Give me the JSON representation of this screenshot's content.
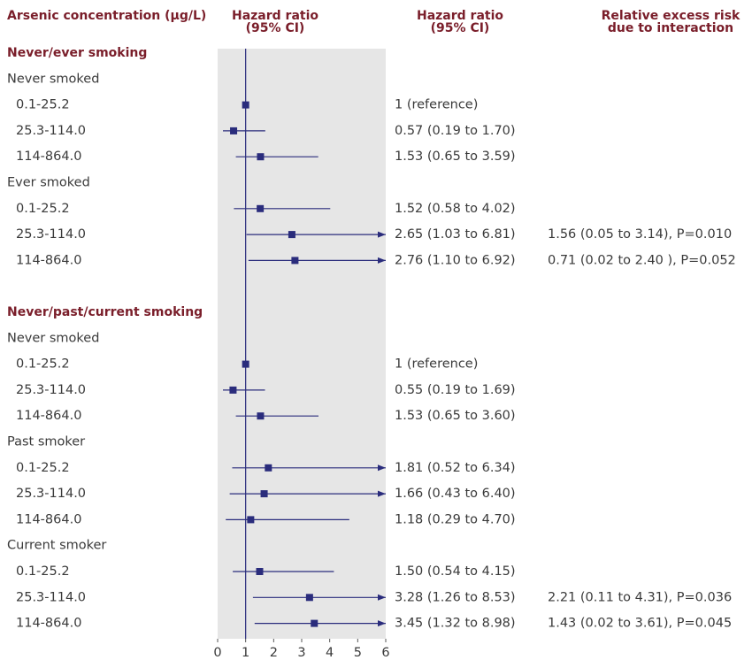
{
  "chart_data": {
    "type": "forest",
    "headers": [
      [
        "Arsenic concentration (μg/L)"
      ],
      [
        "Hazard ratio",
        "(95% CI)"
      ],
      [
        "Hazard ratio",
        "(95% CI)"
      ],
      [
        "Relative excess risk",
        "due to interaction"
      ]
    ],
    "color": "#2a2c7c",
    "reference_line": 1,
    "xlim": [
      0,
      6
    ],
    "xticks": [
      0,
      1,
      2,
      3,
      4,
      5,
      6
    ],
    "rows": [
      {
        "kind": "section",
        "label": "Never/ever smoking"
      },
      {
        "kind": "group",
        "label": "Never smoked"
      },
      {
        "kind": "item",
        "label": "0.1-25.2",
        "value": 1,
        "value_label": "1 (reference)"
      },
      {
        "kind": "item",
        "label": "25.3-114.0",
        "value": 0.57,
        "lower": 0.19,
        "upper": 1.7,
        "value_label": "0.57 (0.19 to 1.70)"
      },
      {
        "kind": "item",
        "label": "114-864.0",
        "value": 1.53,
        "lower": 0.65,
        "upper": 3.59,
        "value_label": "1.53 (0.65 to 3.59)"
      },
      {
        "kind": "group",
        "label": "Ever smoked"
      },
      {
        "kind": "item",
        "label": "0.1-25.2",
        "value": 1.52,
        "lower": 0.58,
        "upper": 4.02,
        "value_label": "1.52 (0.58 to 4.02)"
      },
      {
        "kind": "item",
        "label": "25.3-114.0",
        "value": 2.65,
        "lower": 1.03,
        "upper": 6.81,
        "value_label": "2.65 (1.03 to 6.81)",
        "rer_label": "1.56 (0.05 to 3.14), P=0.010"
      },
      {
        "kind": "item",
        "label": "114-864.0",
        "value": 2.76,
        "lower": 1.1,
        "upper": 6.92,
        "value_label": "2.76 (1.10 to 6.92)",
        "rer_label": "0.71 (0.02 to 2.40 ), P=0.052"
      },
      {
        "kind": "section",
        "label": "Never/past/current smoking"
      },
      {
        "kind": "group",
        "label": "Never smoked"
      },
      {
        "kind": "item",
        "label": "0.1-25.2",
        "value": 1,
        "value_label": "1 (reference)"
      },
      {
        "kind": "item",
        "label": "25.3-114.0",
        "value": 0.55,
        "lower": 0.19,
        "upper": 1.69,
        "value_label": "0.55 (0.19 to 1.69)"
      },
      {
        "kind": "item",
        "label": "114-864.0",
        "value": 1.53,
        "lower": 0.65,
        "upper": 3.6,
        "value_label": "1.53 (0.65 to 3.60)"
      },
      {
        "kind": "group",
        "label": "Past smoker"
      },
      {
        "kind": "item",
        "label": "0.1-25.2",
        "value": 1.81,
        "lower": 0.52,
        "upper": 6.34,
        "value_label": "1.81 (0.52 to 6.34)"
      },
      {
        "kind": "item",
        "label": "25.3-114.0",
        "value": 1.66,
        "lower": 0.43,
        "upper": 6.4,
        "value_label": "1.66 (0.43 to 6.40)"
      },
      {
        "kind": "item",
        "label": "114-864.0",
        "value": 1.18,
        "lower": 0.29,
        "upper": 4.7,
        "value_label": "1.18 (0.29 to 4.70)"
      },
      {
        "kind": "group",
        "label": "Current smoker"
      },
      {
        "kind": "item",
        "label": "0.1-25.2",
        "value": 1.5,
        "lower": 0.54,
        "upper": 4.15,
        "value_label": "1.50 (0.54 to 4.15)"
      },
      {
        "kind": "item",
        "label": "25.3-114.0",
        "value": 3.28,
        "lower": 1.26,
        "upper": 8.53,
        "value_label": "3.28 (1.26 to 8.53)",
        "rer_label": "2.21 (0.11 to 4.31), P=0.036"
      },
      {
        "kind": "item",
        "label": "114-864.0",
        "value": 3.45,
        "lower": 1.32,
        "upper": 8.98,
        "value_label": "3.45 (1.32 to 8.98)",
        "rer_label": "1.43 (0.02 to 3.61), P=0.045"
      }
    ]
  }
}
